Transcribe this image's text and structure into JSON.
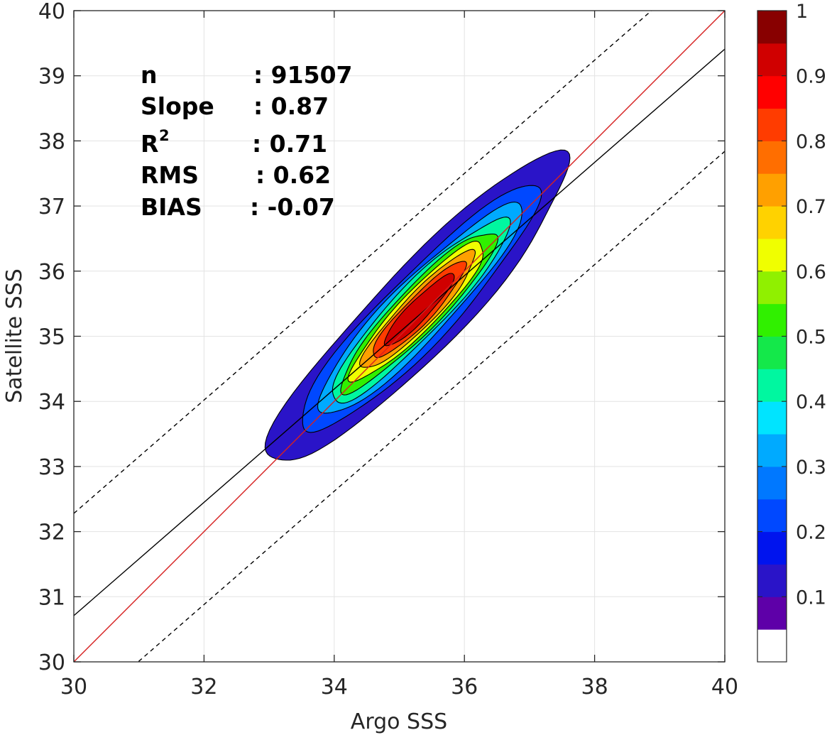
{
  "chart_data": {
    "type": "contour-density",
    "xlabel": "Argo SSS",
    "ylabel": "Satellite SSS",
    "xlim": [
      30,
      40
    ],
    "ylim": [
      30,
      40
    ],
    "xticks": [
      "30",
      "32",
      "34",
      "36",
      "38",
      "40"
    ],
    "yticks": [
      "30",
      "31",
      "32",
      "33",
      "34",
      "35",
      "36",
      "37",
      "38",
      "39",
      "40"
    ],
    "grid": true,
    "stats": [
      {
        "label": "n",
        "value": ": 91507"
      },
      {
        "label": "Slope",
        "value": ": 0.87"
      },
      {
        "label": "R",
        "sup": "2",
        "value": ": 0.71"
      },
      {
        "label": "RMS",
        "value": ": 0.62"
      },
      {
        "label": "BIAS",
        "value": ": -0.07"
      }
    ],
    "lines": {
      "one_to_one": {
        "slope": 1,
        "intercept": 0,
        "color": "#d62020",
        "style": "solid"
      },
      "fit": {
        "slope": 0.87,
        "intercept": 4.61,
        "color": "#000000",
        "style": "solid"
      },
      "fit_upper": {
        "slope": 0.87,
        "intercept": 6.18,
        "color": "#000000",
        "style": "dashed"
      },
      "fit_lower": {
        "slope": 0.87,
        "intercept": 3.04,
        "color": "#000000",
        "style": "dashed"
      }
    },
    "density_ellipse": {
      "center": [
        35.3,
        35.4
      ],
      "angle_deg": 46,
      "base_semi_major": 3.25,
      "base_semi_minor": 0.66
    },
    "levels": [
      0.05,
      0.15,
      0.25,
      0.35,
      0.45,
      0.55,
      0.65,
      0.75,
      0.85
    ],
    "colorbar": {
      "range": [
        0,
        1
      ],
      "ticks": [
        "0.1",
        "0.2",
        "0.3",
        "0.4",
        "0.5",
        "0.6",
        "0.7",
        "0.8",
        "0.9",
        "1"
      ],
      "colors": [
        "#ffffff",
        "#5e00a8",
        "#2a14c8",
        "#0014ee",
        "#0048ff",
        "#0078ff",
        "#00aaff",
        "#00e4ff",
        "#00f7a0",
        "#14e84a",
        "#30f000",
        "#90f000",
        "#f0ff00",
        "#ffd200",
        "#ffa000",
        "#ff6e00",
        "#ff3c00",
        "#ff0000",
        "#d00000",
        "#880000"
      ]
    }
  }
}
